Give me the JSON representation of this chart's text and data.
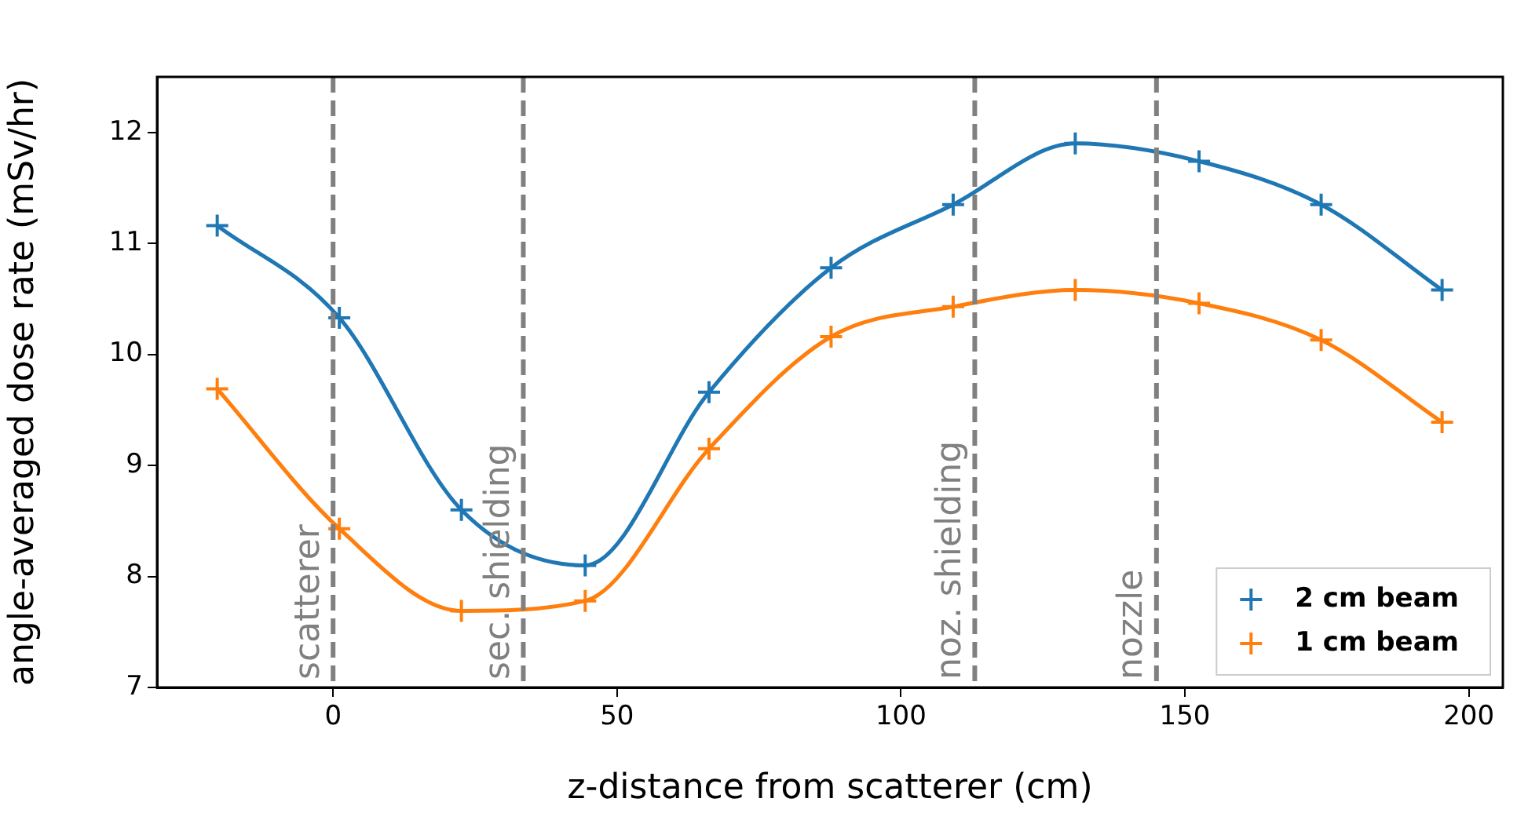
{
  "chart_data": {
    "type": "line",
    "xlabel": "z-distance from scatterer (cm)",
    "ylabel": "angle-averaged dose rate (mSv/hr)",
    "x": [
      -20.4,
      1.1,
      22.6,
      44.4,
      66.2,
      87.7,
      109.2,
      130.7,
      152.5,
      174.0,
      195.3
    ],
    "series": [
      {
        "name": "2 cm beam",
        "color": "#1f77b4",
        "values": [
          11.16,
          10.33,
          8.6,
          8.1,
          9.66,
          10.78,
          11.35,
          11.9,
          11.74,
          11.35,
          10.58
        ]
      },
      {
        "name": "1 cm beam",
        "color": "#ff7f0e",
        "values": [
          9.69,
          8.43,
          7.69,
          7.78,
          9.15,
          10.16,
          10.43,
          10.58,
          10.46,
          10.13,
          9.39
        ]
      }
    ],
    "xlim": [
      -31,
      206
    ],
    "xticks": [
      0,
      50,
      100,
      150,
      200
    ],
    "ylim": [
      7,
      12.5
    ],
    "yticks": [
      7,
      8,
      9,
      10,
      11,
      12
    ],
    "ref_lines": [
      {
        "axis": "x",
        "value": 0,
        "label": "scatterer",
        "color": "#808080",
        "line_style": "dashed"
      },
      {
        "axis": "x",
        "value": 33.5,
        "label": "sec. shielding",
        "color": "#808080",
        "line_style": "dashed"
      },
      {
        "axis": "x",
        "value": 113,
        "label": "noz. shielding",
        "color": "#808080",
        "line_style": "dashed"
      },
      {
        "axis": "x",
        "value": 145,
        "label": "nozzle",
        "color": "#808080",
        "line_style": "dashed"
      }
    ],
    "legend": "bottom right",
    "marker": "cross",
    "line_style": "solid",
    "grid": false
  }
}
